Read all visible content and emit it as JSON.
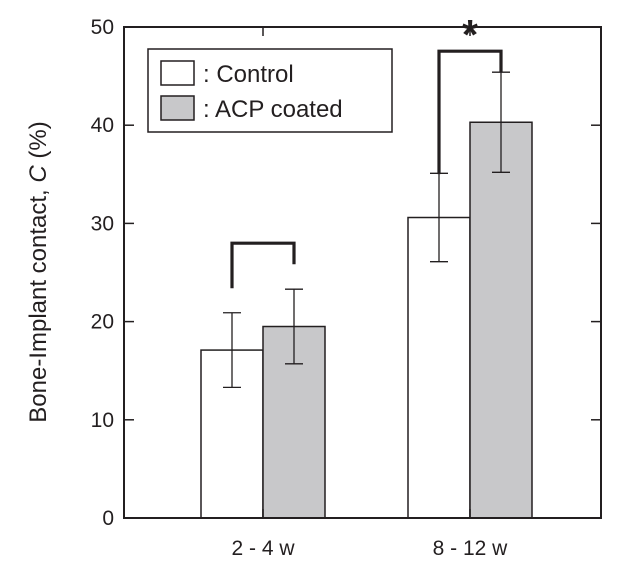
{
  "chart_data": {
    "type": "bar",
    "categories": [
      "2 - 4 w",
      "8 - 12 w"
    ],
    "series": [
      {
        "name": "Control",
        "values": [
          17.1,
          30.6
        ],
        "errors": [
          3.8,
          4.5
        ],
        "color": "#ffffff"
      },
      {
        "name": "ACP coated",
        "values": [
          19.5,
          40.3
        ],
        "errors": [
          3.8,
          5.1
        ],
        "color": "#c8c8ca"
      }
    ],
    "ylim": [
      0,
      50
    ],
    "yticks": [
      0,
      10,
      20,
      30,
      40,
      50
    ],
    "ylabel_prefix": "Bone-Implant contact, ",
    "ylabel_var": "C",
    "ylabel_suffix": " (%)",
    "xlabel": "",
    "legend": {
      "placement": "top-left",
      "entries": [
        ": Control",
        ": ACP coated"
      ]
    },
    "significance": [
      {
        "category": "2 - 4 w",
        "label": ""
      },
      {
        "category": "8 - 12 w",
        "label": "*"
      }
    ],
    "grid": false
  }
}
